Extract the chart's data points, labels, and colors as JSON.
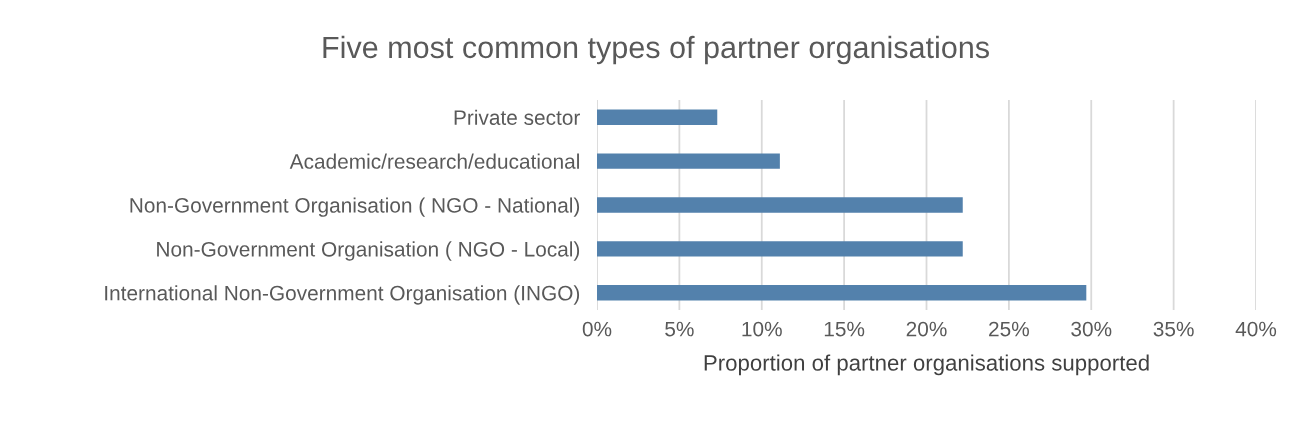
{
  "chart_data": {
    "type": "bar",
    "orientation": "horizontal",
    "title": "Five most common types of partner organisations",
    "xlabel": "Proportion of partner organisations supported",
    "categories": [
      "Private sector",
      "Academic/research/educational",
      "Non-Government Organisation ( NGO - National)",
      "Non-Government Organisation ( NGO - Local)",
      "International Non-Government Organisation (INGO)"
    ],
    "values": [
      7.3,
      11.1,
      22.2,
      22.2,
      29.7
    ],
    "color": "#5381ac",
    "xlim": [
      0,
      40
    ],
    "xticks": [
      {
        "value": 0,
        "label": "0%"
      },
      {
        "value": 5,
        "label": "5%"
      },
      {
        "value": 10,
        "label": "10%"
      },
      {
        "value": 15,
        "label": "15%"
      },
      {
        "value": 20,
        "label": "20%"
      },
      {
        "value": 25,
        "label": "25%"
      },
      {
        "value": 30,
        "label": "30%"
      },
      {
        "value": 35,
        "label": "35%"
      },
      {
        "value": 40,
        "label": "40%"
      }
    ],
    "grid": "x",
    "legend": false
  }
}
